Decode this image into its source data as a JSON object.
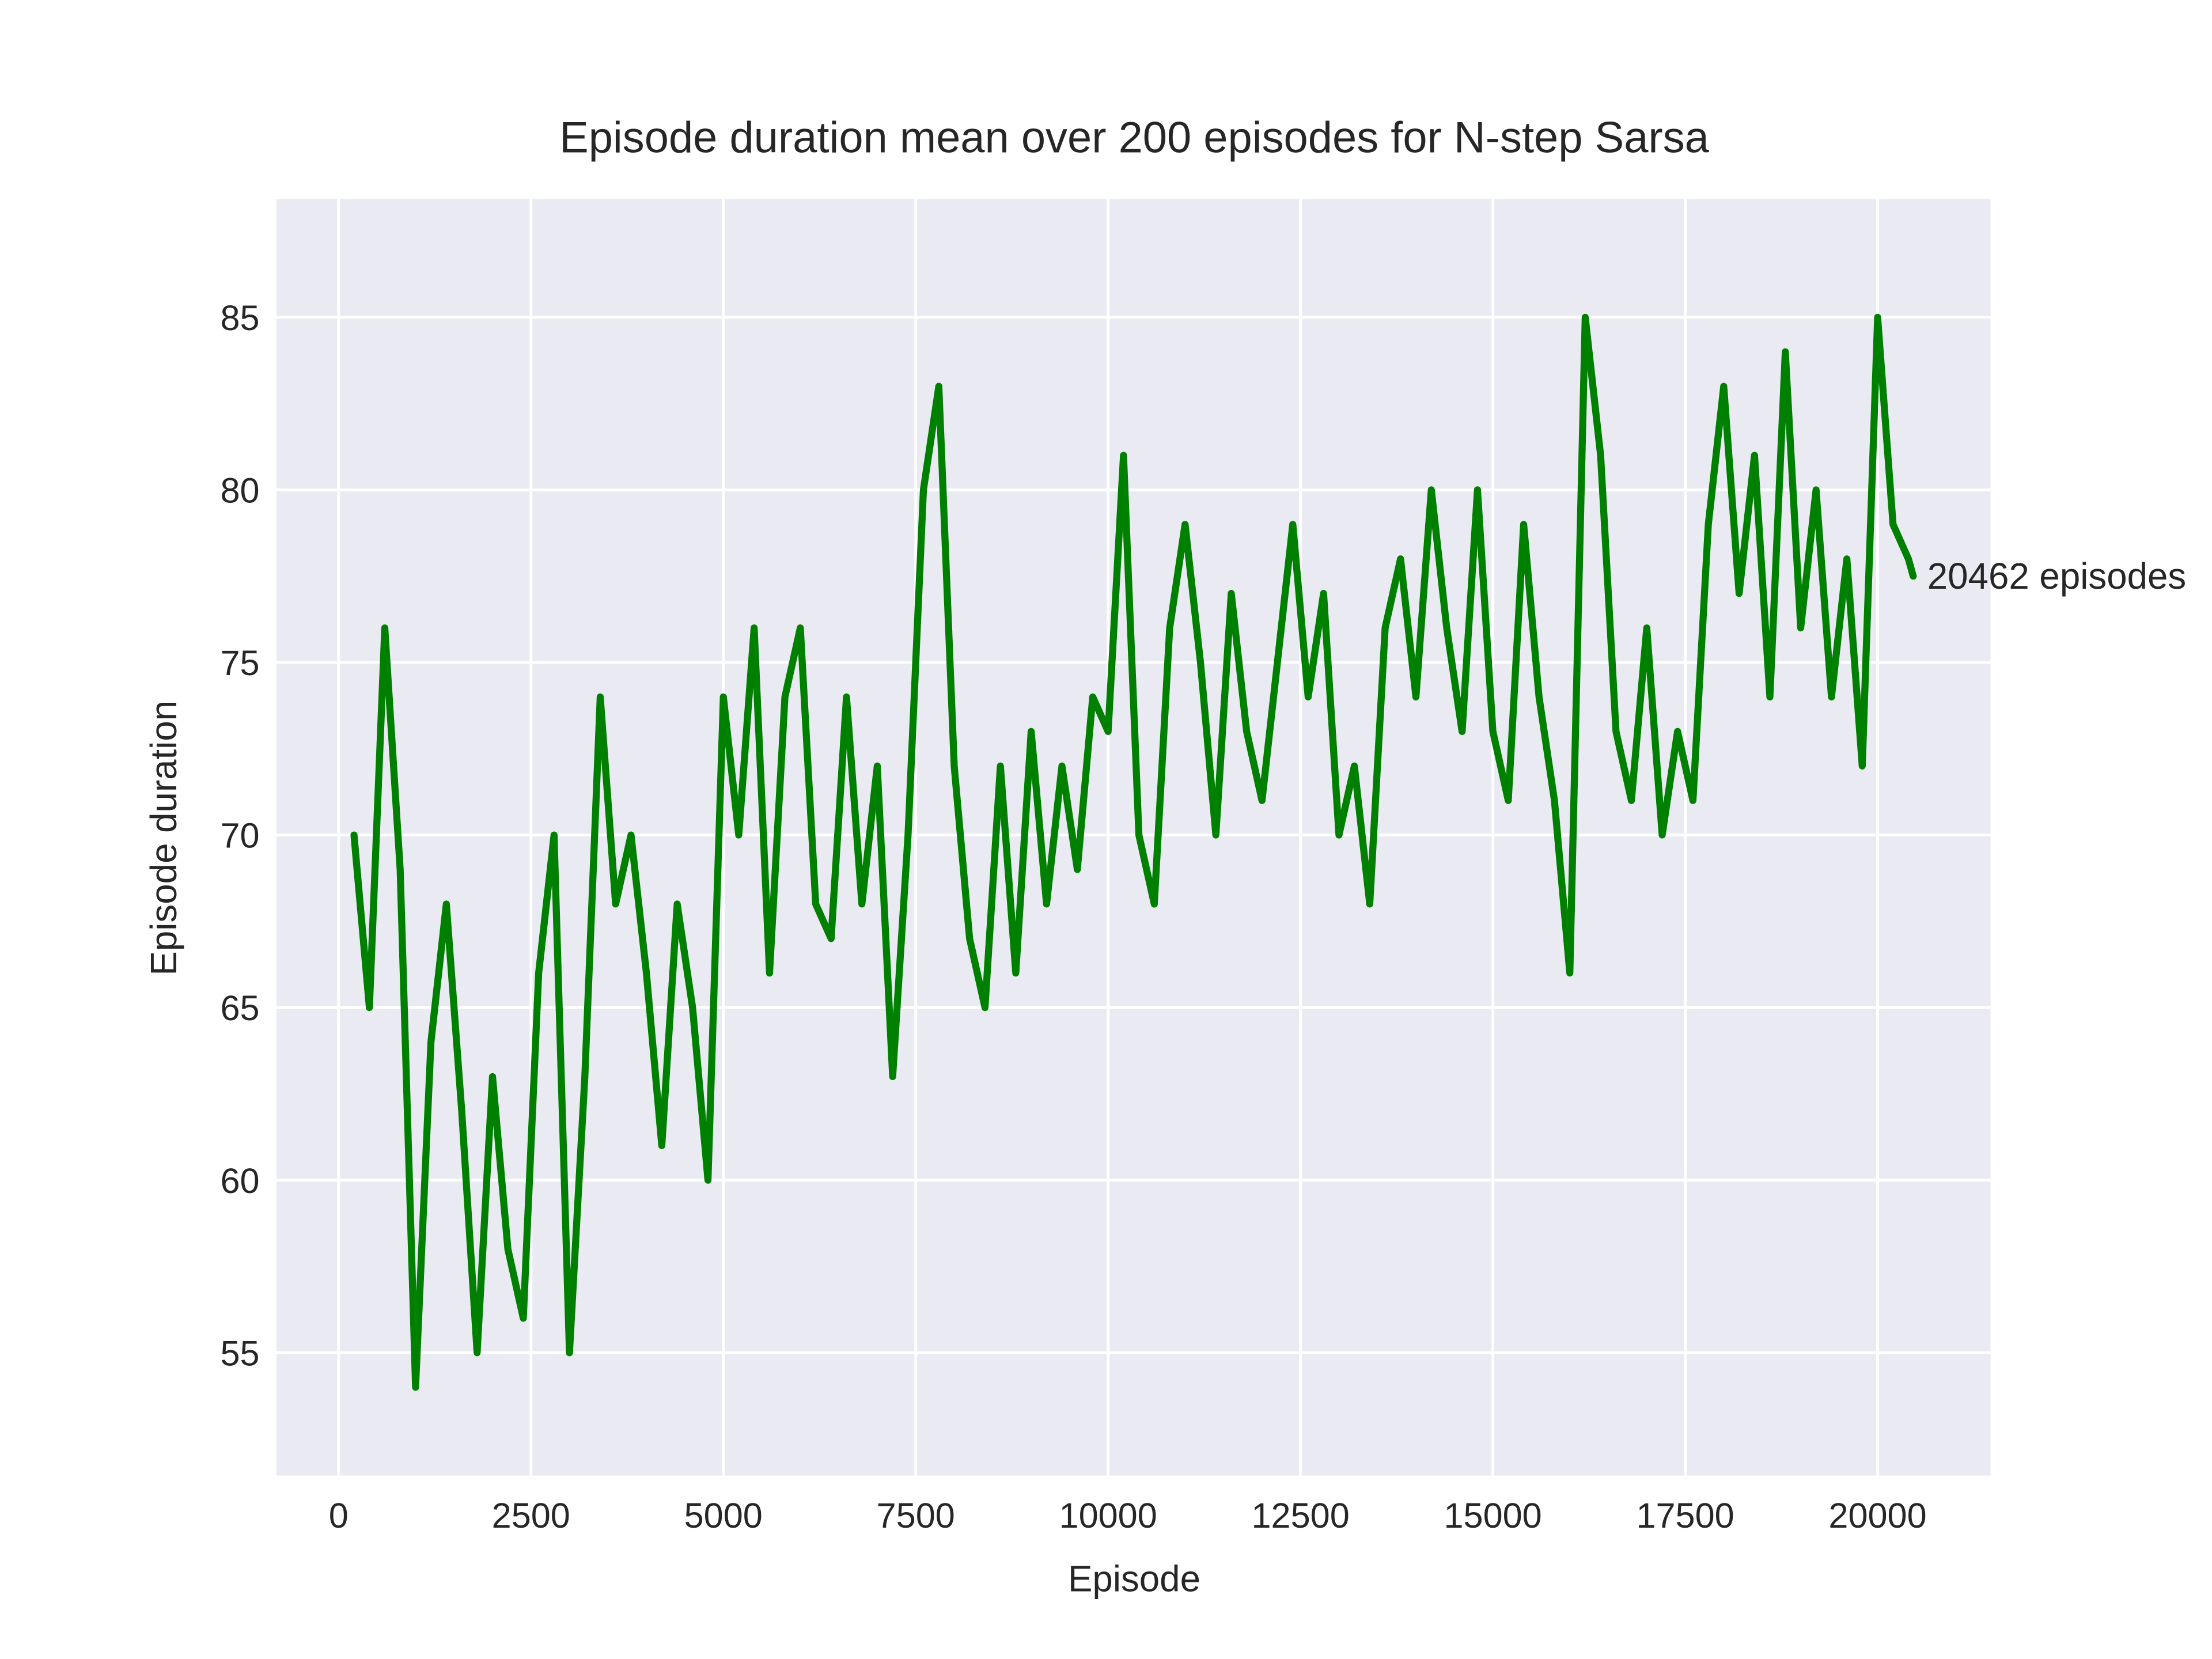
{
  "chart_data": {
    "type": "line",
    "title": "Episode duration mean over 200 episodes for N-step Sarsa",
    "x_label": "Episode",
    "y_label": "Episode duration",
    "annotation": "20462 episodes",
    "annotation_x": 20462,
    "annotation_y": 77.5,
    "x": [
      200,
      400,
      600,
      800,
      1000,
      1200,
      1400,
      1600,
      1800,
      2000,
      2200,
      2400,
      2600,
      2800,
      3000,
      3200,
      3400,
      3600,
      3800,
      4000,
      4200,
      4400,
      4600,
      4800,
      5000,
      5200,
      5400,
      5600,
      5800,
      6000,
      6200,
      6400,
      6600,
      6800,
      7000,
      7200,
      7400,
      7600,
      7800,
      8000,
      8200,
      8400,
      8600,
      8800,
      9000,
      9200,
      9400,
      9600,
      9800,
      10000,
      10200,
      10400,
      10600,
      10800,
      11000,
      11200,
      11400,
      11600,
      11800,
      12000,
      12200,
      12400,
      12600,
      12800,
      13000,
      13200,
      13400,
      13600,
      13800,
      14000,
      14200,
      14400,
      14600,
      14800,
      15000,
      15200,
      15400,
      15600,
      15800,
      16000,
      16200,
      16400,
      16600,
      16800,
      17000,
      17200,
      17400,
      17600,
      17800,
      18000,
      18200,
      18400,
      18600,
      18800,
      19000,
      19200,
      19400,
      19600,
      19800,
      20000,
      20200,
      20400,
      20462
    ],
    "series": [
      {
        "name": "N-step Sarsa",
        "color": "#008000",
        "values": [
          70,
          65,
          76,
          69,
          54,
          64,
          68,
          62,
          55,
          63,
          58,
          56,
          66,
          70,
          55,
          63,
          74,
          68,
          70,
          66,
          61,
          68,
          65,
          60,
          74,
          70,
          76,
          66,
          74,
          76,
          68,
          67,
          74,
          68,
          72,
          63,
          70,
          80,
          83,
          72,
          67,
          65,
          72,
          66,
          73,
          68,
          72,
          69,
          74,
          73,
          81,
          70,
          68,
          76,
          79,
          75,
          70,
          77,
          73,
          71,
          75,
          79,
          74,
          77,
          70,
          72,
          68,
          76,
          78,
          74,
          80,
          76,
          73,
          80,
          73,
          71,
          79,
          74,
          71,
          66,
          85,
          81,
          73,
          71,
          76,
          70,
          73,
          71,
          79,
          83,
          77,
          81,
          74,
          84,
          76,
          80,
          74,
          78,
          72,
          85,
          79,
          78,
          77.5
        ]
      }
    ],
    "xlim": [
      -807,
      21467
    ],
    "ylim": [
      51.44,
      88.43
    ],
    "xticks": [
      0,
      2500,
      5000,
      7500,
      10000,
      12500,
      15000,
      17500,
      20000
    ],
    "yticks": [
      55,
      60,
      65,
      70,
      75,
      80,
      85
    ],
    "grid": true,
    "background": "#eaeaf2",
    "grid_color": "#ffffff"
  }
}
